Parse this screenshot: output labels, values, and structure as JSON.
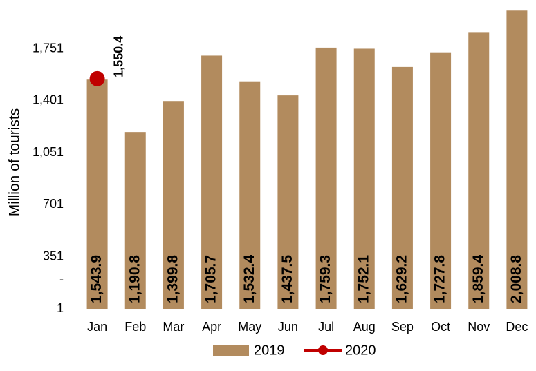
{
  "chart_data": {
    "type": "bar",
    "y_label": "Million of tourists",
    "categories": [
      "Jan",
      "Feb",
      "Mar",
      "Apr",
      "May",
      "Jun",
      "Jul",
      "Aug",
      "Sep",
      "Oct",
      "Nov",
      "Dec"
    ],
    "series": [
      {
        "name": "2019",
        "type": "bar",
        "color": "#b28b5e",
        "values": [
          1543.9,
          1190.8,
          1399.8,
          1705.7,
          1532.4,
          1437.5,
          1759.3,
          1752.1,
          1629.2,
          1727.8,
          1859.4,
          2008.8
        ],
        "value_labels": [
          "1,543.9",
          "1,190.8",
          "1,399.8",
          "1,705.7",
          "1,532.4",
          "1,437.5",
          "1,759.3",
          "1,752.1",
          "1,629.2",
          "1,727.8",
          "1,859.4",
          "2,008.8"
        ]
      },
      {
        "name": "2020",
        "type": "line",
        "color": "#c00000",
        "values": [
          1550.4,
          null,
          null,
          null,
          null,
          null,
          null,
          null,
          null,
          null,
          null,
          null
        ],
        "value_labels": [
          "1,550.4",
          null,
          null,
          null,
          null,
          null,
          null,
          null,
          null,
          null,
          null,
          null
        ]
      }
    ],
    "ylim": [
      1,
      2010
    ],
    "yticks": [
      1,
      351,
      {
        "value": 195,
        "label": "-"
      },
      701,
      {
        "value": 1051,
        "label": "1,051"
      },
      {
        "value": 1401,
        "label": "1,401"
      },
      {
        "value": 1751,
        "label": "1,751"
      }
    ],
    "legend": "bottom"
  }
}
